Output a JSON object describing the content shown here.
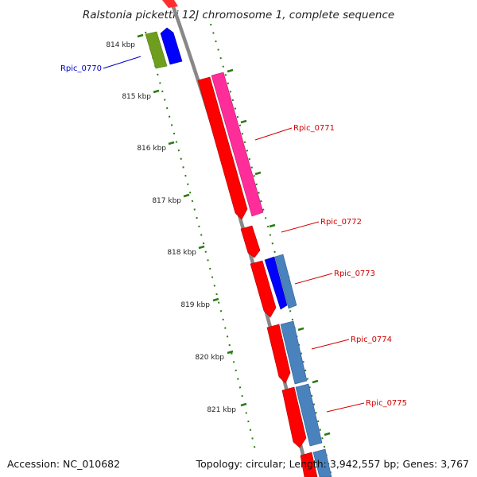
{
  "title": "Ralstonia pickettii 12J chromosome 1, complete sequence",
  "ticks": [
    "814 kbp",
    "815 kbp",
    "816 kbp",
    "817 kbp",
    "818 kbp",
    "819 kbp",
    "820 kbp",
    "821 kbp"
  ],
  "genes": [
    {
      "label": "Rpic_0770",
      "color": "#0000c8"
    },
    {
      "label": "Rpic_0771",
      "color": "#d00000"
    },
    {
      "label": "Rpic_0772",
      "color": "#d00000"
    },
    {
      "label": "Rpic_0773",
      "color": "#d00000"
    },
    {
      "label": "Rpic_0774",
      "color": "#d00000"
    },
    {
      "label": "Rpic_0775",
      "color": "#d00000"
    }
  ],
  "colors": {
    "backbone": "#888888",
    "cds": "#ff0000",
    "feature_pink": "#ff2d9a",
    "feature_blue": "#0000ff",
    "feature_steel": "#4a82bd",
    "feature_olive": "#6f9e1f",
    "tick": "#2b7a12"
  },
  "footer": {
    "accession": "Accession: NC_010682",
    "info": "Topology: circular; Length: 3,942,557 bp; Genes: 3,767"
  }
}
